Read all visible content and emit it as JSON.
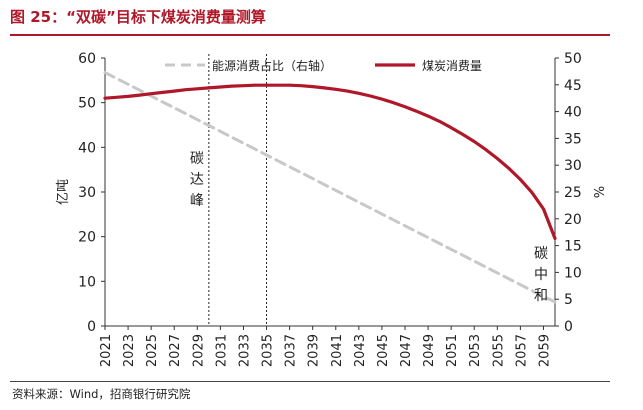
{
  "header": {
    "title": "图 25：“双碳”目标下煤炭消费量测算"
  },
  "footer": {
    "source": "资料来源：Wind，招商银行研究院"
  },
  "chart_data": {
    "type": "line",
    "x": [
      2021,
      2022,
      2023,
      2024,
      2025,
      2026,
      2027,
      2028,
      2029,
      2030,
      2031,
      2032,
      2033,
      2034,
      2035,
      2036,
      2037,
      2038,
      2039,
      2040,
      2041,
      2042,
      2043,
      2044,
      2045,
      2046,
      2047,
      2048,
      2049,
      2050,
      2051,
      2052,
      2053,
      2054,
      2055,
      2056,
      2057,
      2058,
      2059,
      2060
    ],
    "x_ticks": [
      "2021",
      "2023",
      "2025",
      "2027",
      "2029",
      "2031",
      "2033",
      "2035",
      "2037",
      "2039",
      "2041",
      "2043",
      "2045",
      "2047",
      "2049",
      "2051",
      "2053",
      "2055",
      "2057",
      "2059"
    ],
    "y_left_ticks": [
      "0",
      "10",
      "20",
      "30",
      "40",
      "50",
      "60"
    ],
    "y_right_ticks": [
      "0",
      "5",
      "10",
      "15",
      "20",
      "25",
      "30",
      "35",
      "40",
      "45",
      "50"
    ],
    "ylim_left": [
      0,
      60
    ],
    "ylim_right": [
      0,
      50
    ],
    "ylabel_left": "亿吨",
    "ylabel_right": "%",
    "series": [
      {
        "name": "能源消费占比（右轴）",
        "axis": "right",
        "style": "dashed",
        "color": "#c8c8c8",
        "values": [
          47.3,
          46.2,
          45.1,
          44.0,
          42.9,
          41.8,
          40.7,
          39.6,
          38.5,
          37.4,
          36.3,
          35.2,
          34.1,
          33.0,
          31.9,
          30.8,
          29.7,
          28.6,
          27.5,
          26.4,
          25.3,
          24.2,
          23.1,
          22.0,
          20.9,
          19.8,
          18.7,
          17.6,
          16.5,
          15.4,
          14.3,
          13.2,
          12.1,
          11.0,
          9.9,
          8.8,
          7.7,
          6.6,
          5.5,
          4.5
        ]
      },
      {
        "name": "煤炭消费量",
        "axis": "left",
        "style": "solid",
        "color": "#b0182a",
        "values": [
          51.0,
          51.2,
          51.4,
          51.7,
          52.0,
          52.3,
          52.6,
          52.9,
          53.1,
          53.3,
          53.5,
          53.7,
          53.8,
          53.9,
          53.9,
          53.9,
          53.9,
          53.8,
          53.6,
          53.3,
          53.0,
          52.6,
          52.1,
          51.5,
          50.8,
          50.0,
          49.1,
          48.1,
          47.0,
          45.8,
          44.4,
          42.9,
          41.3,
          39.5,
          37.5,
          35.3,
          32.8,
          29.9,
          26.2,
          19.6
        ]
      }
    ],
    "legend_position": "top",
    "grid": false,
    "annotations": [
      {
        "text": "碳达峰",
        "x": 2030,
        "line": "dotted"
      },
      {
        "line": "dotted",
        "x": 2035
      },
      {
        "text": "碳中和",
        "x": 2060
      }
    ]
  }
}
